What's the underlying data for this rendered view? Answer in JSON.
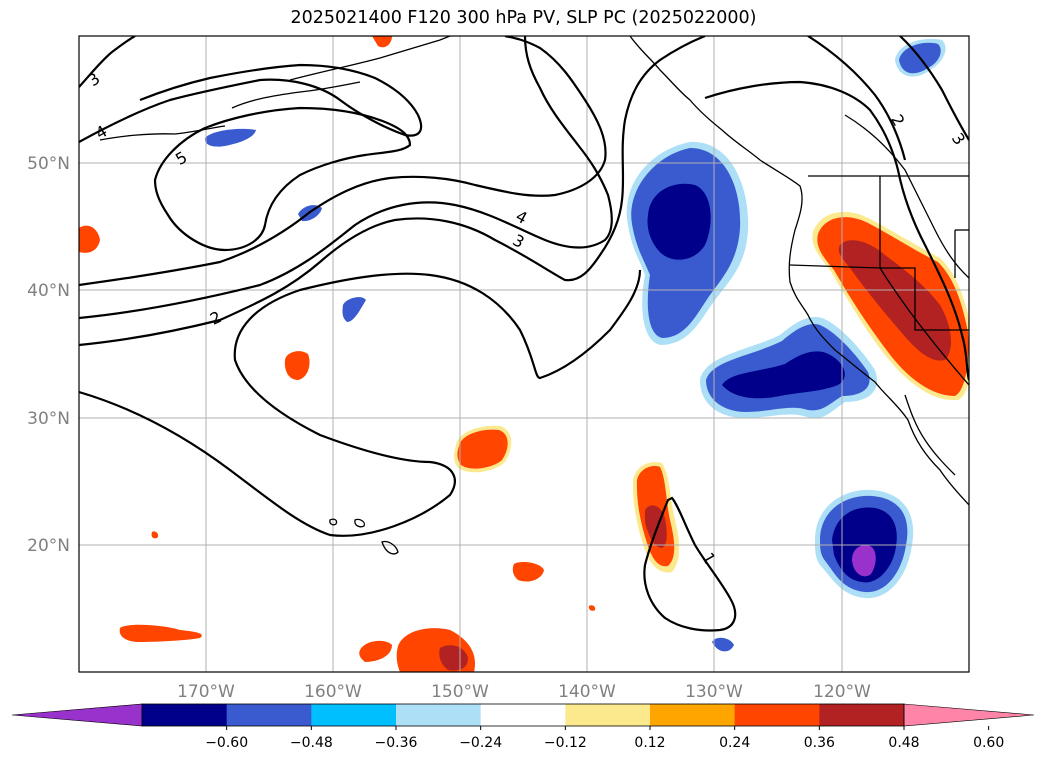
{
  "title": "2025021400 F120 300 hPa PV, SLP PC (2025022000)",
  "map": {
    "projection": "lat-lon",
    "lon_range": [
      -180,
      -110
    ],
    "lat_range": [
      10,
      60
    ],
    "gridlines": true,
    "lat_labels": [
      "50°N",
      "40°N",
      "30°N",
      "20°N"
    ],
    "lon_labels": [
      "170°W",
      "160°W",
      "150°W",
      "140°W",
      "130°W",
      "120°W"
    ]
  },
  "contour_labels": [
    "3",
    "4",
    "5",
    "4",
    "3",
    "2",
    "2",
    "3",
    "1"
  ],
  "colorbar": {
    "colors": [
      "#9932CC",
      "#00008B",
      "#3A5BCF",
      "#00BFFF",
      "#ADDFF7",
      "#FFFFFF",
      "#FCE98E",
      "#FFA500",
      "#FF4500",
      "#B22222",
      "#FF85A8"
    ],
    "tick_labels": [
      "−0.60",
      "−0.48",
      "−0.36",
      "−0.24",
      "−0.12",
      "0.12",
      "0.24",
      "0.36",
      "0.48",
      "0.60"
    ],
    "extend": "both"
  }
}
